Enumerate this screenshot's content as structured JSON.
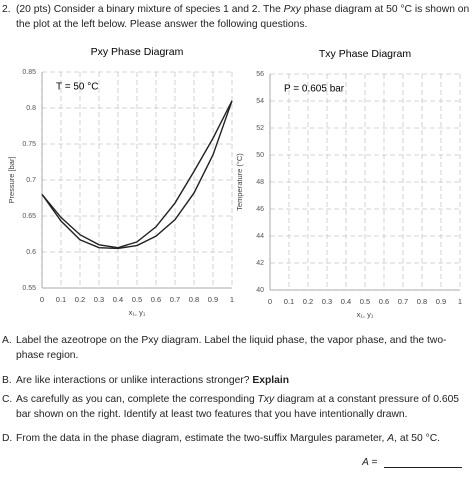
{
  "question": {
    "number": "2.",
    "text": [
      "(20 pts) Consider a binary mixture of species 1 and 2. The ",
      "Pxy",
      " phase diagram at 50 °C is shown on the plot at the left below. Please answer the following questions."
    ]
  },
  "chart_data": [
    {
      "type": "line",
      "title": "Pxy Phase Diagram",
      "annotation": "T = 50 °C",
      "xlabel": "x₁, y₁",
      "ylabel": "Pressure [bar]",
      "x": [
        0,
        0.1,
        0.2,
        0.3,
        0.4,
        0.5,
        0.6,
        0.7,
        0.8,
        0.9,
        1
      ],
      "series": [
        {
          "color": "#222222",
          "values": [
            0.68,
            0.648,
            0.624,
            0.61,
            0.606,
            0.614,
            0.635,
            0.668,
            0.712,
            0.758,
            0.81
          ]
        },
        {
          "color": "#222222",
          "values": [
            0.68,
            0.643,
            0.617,
            0.606,
            0.605,
            0.609,
            0.622,
            0.645,
            0.682,
            0.735,
            0.81
          ]
        }
      ],
      "xlim": [
        0,
        1
      ],
      "ylim": [
        0.55,
        0.85
      ],
      "xticks": [
        0,
        0.1,
        0.2,
        0.3,
        0.4,
        0.5,
        0.6,
        0.7,
        0.8,
        0.9,
        1
      ],
      "yticks": [
        0.55,
        0.6,
        0.65,
        0.7,
        0.75,
        0.8,
        0.85
      ],
      "grid": true
    },
    {
      "type": "line",
      "title": "Txy Phase Diagram",
      "annotation": "P = 0.605 bar",
      "xlabel": "x₁, y₁",
      "ylabel": "Temperature (°C)",
      "xlim": [
        0,
        1
      ],
      "ylim": [
        40,
        56
      ],
      "xticks": [
        0,
        0.1,
        0.2,
        0.3,
        0.4,
        0.5,
        0.6,
        0.7,
        0.8,
        0.9,
        1
      ],
      "yticks": [
        40,
        42,
        44,
        46,
        48,
        50,
        52,
        54,
        56
      ],
      "grid": true
    }
  ],
  "parts": [
    {
      "label": "A.",
      "text": [
        "Label the azeotrope on the Pxy diagram. Label the liquid phase, the vapor phase, and the two-phase region."
      ]
    },
    {
      "label": "B.",
      "text": [
        "Are like interactions or unlike interactions stronger? ",
        "Explain"
      ]
    },
    {
      "label": "C.",
      "text": [
        "As carefully as you can, complete the corresponding ",
        "Txy",
        " diagram at a constant pressure of 0.605 bar shown on the right. Identify at least two features that you have intentionally drawn."
      ]
    },
    {
      "label": "D.",
      "text": [
        "From the data in the phase diagram, estimate the two-suffix Margules parameter, ",
        "A",
        ", at 50 °C."
      ]
    }
  ],
  "answer": {
    "label": "A ="
  }
}
